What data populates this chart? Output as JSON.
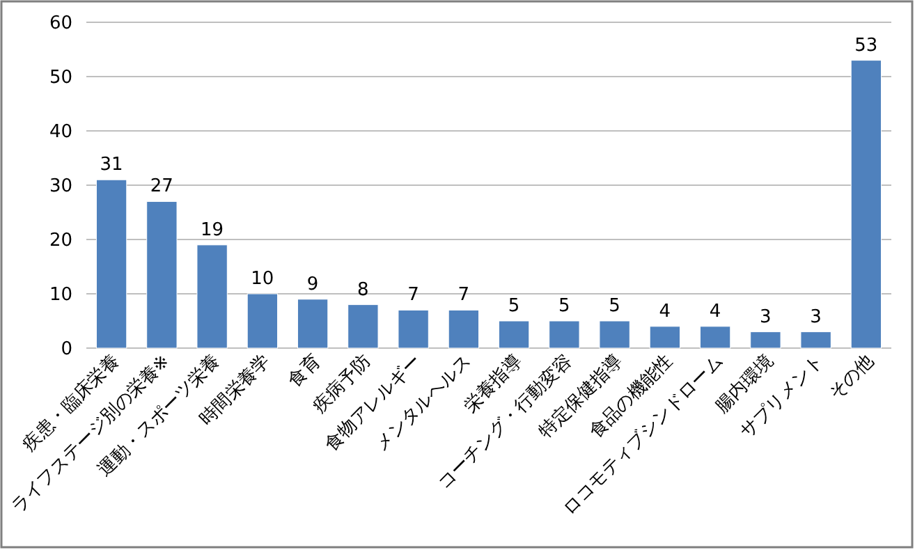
{
  "chart_data": {
    "type": "bar",
    "categories": [
      "疾患・臨床栄養",
      "ライフステージ別の栄養※",
      "運動・スポーツ栄養",
      "時間栄養学",
      "食育",
      "疾病予防",
      "食物アレルギー",
      "メンタルヘルス",
      "栄養指導",
      "コーチング・行動変容",
      "特定保健指導",
      "食品の機能性",
      "ロコモティブシンドローム",
      "腸内環境",
      "サプリメント",
      "その他"
    ],
    "values": [
      31,
      27,
      19,
      10,
      9,
      8,
      7,
      7,
      5,
      5,
      5,
      4,
      4,
      3,
      3,
      53
    ],
    "color": "#4f81bd",
    "ylim": [
      0,
      60
    ],
    "yticks": [
      0,
      10,
      20,
      30,
      40,
      50,
      60
    ],
    "grid": "y",
    "data_labels": true
  }
}
